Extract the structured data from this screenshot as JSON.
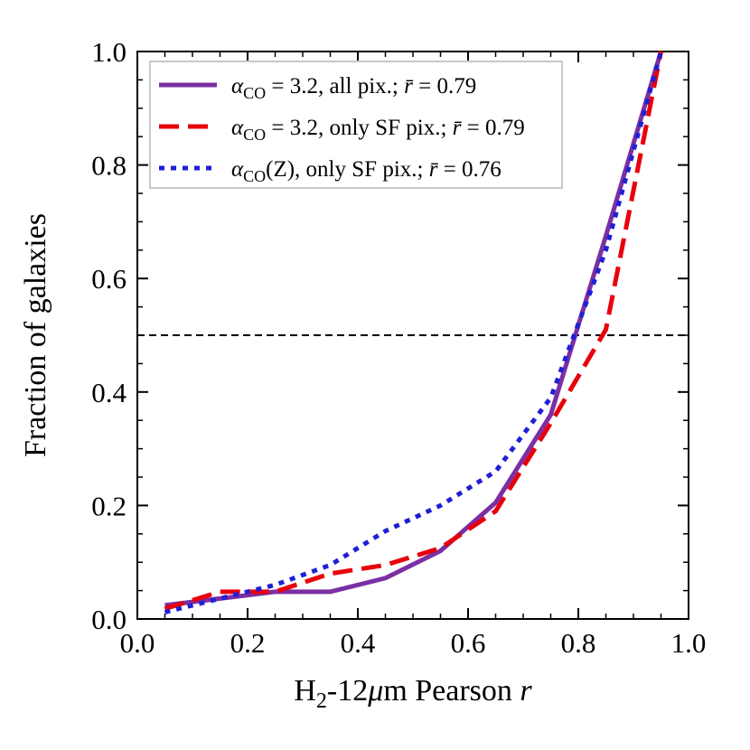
{
  "chart_data": {
    "type": "line",
    "xlabel_parts": {
      "main": "H",
      "sub": "2",
      "rest_upright": "-12",
      "mu": "μ",
      "after_mu": "m Pearson ",
      "italic": "r"
    },
    "ylabel": "Fraction of galaxies",
    "xlim": [
      0.0,
      1.0
    ],
    "ylim": [
      0.0,
      1.0
    ],
    "xticks": [
      0.0,
      0.2,
      0.4,
      0.6,
      0.8,
      1.0
    ],
    "yticks": [
      0.0,
      0.2,
      0.4,
      0.6,
      0.8,
      1.0
    ],
    "xtick_labels": [
      "0.0",
      "0.2",
      "0.4",
      "0.6",
      "0.8",
      "1.0"
    ],
    "ytick_labels": [
      "0.0",
      "0.2",
      "0.4",
      "0.6",
      "0.8",
      "1.0"
    ],
    "reference_line": {
      "y": 0.5,
      "style": "dashed",
      "color": "#000000"
    },
    "legend": {
      "placement": "upper-left"
    },
    "series": [
      {
        "name": "alpha_CO = 3.2, all pix.; r̄ = 0.79",
        "label_parts": {
          "greek": "α",
          "sub": "CO",
          "mid": " = 3.2, all pix.; ",
          "rbar": "r̄",
          "tail": " = 0.79"
        },
        "style": "solid",
        "color": "#7b2fa3",
        "x": [
          0.05,
          0.15,
          0.25,
          0.35,
          0.45,
          0.55,
          0.65,
          0.75,
          0.85,
          0.95
        ],
        "y": [
          0.024,
          0.036,
          0.048,
          0.048,
          0.072,
          0.12,
          0.205,
          0.36,
          0.675,
          1.0
        ]
      },
      {
        "name": "alpha_CO = 3.2, only SF pix.; r̄ = 0.79",
        "label_parts": {
          "greek": "α",
          "sub": "CO",
          "mid": " = 3.2, only SF pix.; ",
          "rbar": "r̄",
          "tail": " = 0.79"
        },
        "style": "dashed",
        "color": "#e8000b",
        "x": [
          0.05,
          0.15,
          0.25,
          0.35,
          0.45,
          0.55,
          0.65,
          0.75,
          0.85,
          0.95
        ],
        "y": [
          0.018,
          0.048,
          0.048,
          0.08,
          0.095,
          0.125,
          0.19,
          0.345,
          0.51,
          1.0
        ]
      },
      {
        "name": "alpha_CO(Z), only SF pix.; r̄ = 0.76",
        "label_parts": {
          "greek": "α",
          "sub": "CO",
          "mid": "(Z), only SF pix.; ",
          "rbar": "r̄",
          "tail": " = 0.76"
        },
        "style": "dotted",
        "color": "#1f1fd6",
        "x": [
          0.05,
          0.15,
          0.25,
          0.35,
          0.45,
          0.55,
          0.65,
          0.75,
          0.85,
          0.95
        ],
        "y": [
          0.012,
          0.036,
          0.06,
          0.095,
          0.155,
          0.2,
          0.26,
          0.39,
          0.65,
          1.0
        ]
      }
    ]
  }
}
